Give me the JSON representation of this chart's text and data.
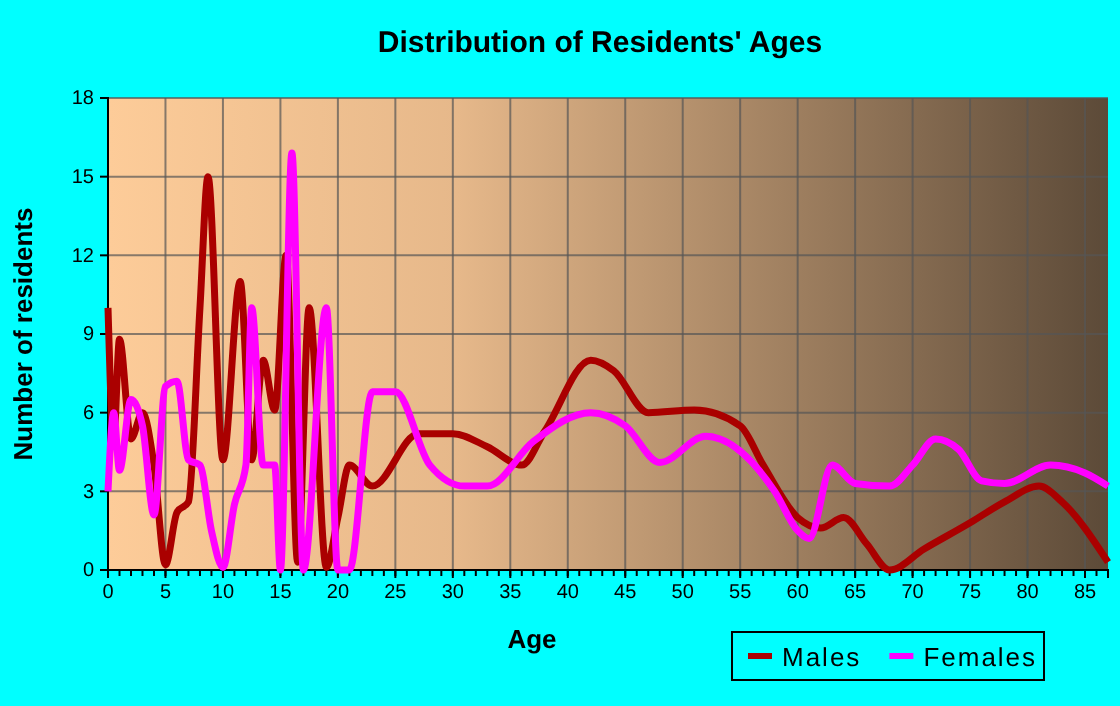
{
  "chart_data": {
    "type": "line",
    "title": "Distribution of Residents' Ages",
    "xlabel": "Age",
    "ylabel": "Number of residents",
    "xlim": [
      0,
      87
    ],
    "xticks": [
      0,
      5,
      10,
      15,
      20,
      25,
      30,
      35,
      40,
      45,
      50,
      55,
      60,
      65,
      70,
      75,
      80,
      85
    ],
    "ylim": [
      0,
      18
    ],
    "yticks": [
      0,
      3,
      6,
      9,
      12,
      15,
      18
    ],
    "grid": true,
    "legend": "bottom right",
    "marker": "none",
    "line_style": "solid",
    "series": [
      {
        "name": "Males",
        "color": "#aa0000",
        "x": [
          0,
          0.5,
          1,
          2,
          3,
          4,
          5,
          6,
          7,
          8,
          8.7,
          10,
          11.5,
          12.5,
          13.5,
          14.5,
          15.5,
          16.5,
          17.5,
          19,
          20,
          21,
          23,
          27,
          30,
          33,
          36,
          38,
          42,
          44,
          47,
          51,
          55,
          57,
          60,
          62,
          64,
          66,
          68,
          71,
          75,
          78,
          81,
          83,
          87
        ],
        "values": [
          10,
          5,
          8.8,
          5,
          6,
          4,
          0.2,
          2.2,
          2.6,
          10,
          15,
          4.2,
          11,
          4.2,
          8,
          6.1,
          12,
          0.3,
          10,
          0.1,
          2,
          4,
          3.2,
          5.2,
          5.2,
          4.7,
          4,
          5.3,
          8,
          7.6,
          6,
          6.1,
          5.5,
          4,
          2,
          1.6,
          2,
          1,
          0,
          0.8,
          1.8,
          2.6,
          3.2,
          2.6,
          0.3
        ]
      },
      {
        "name": "Females",
        "color": "#ff00ff",
        "x": [
          0,
          0.5,
          1,
          2,
          3,
          4,
          5,
          6,
          7,
          8,
          9,
          10,
          11,
          12,
          12.5,
          13.5,
          14.5,
          15,
          16,
          17,
          19,
          20,
          21,
          23,
          25,
          28,
          31,
          33,
          37,
          42,
          45,
          48,
          52,
          58,
          60,
          61,
          63,
          65,
          68,
          70,
          72,
          74,
          76,
          78,
          82,
          85,
          87
        ],
        "values": [
          3,
          6,
          3.8,
          6.5,
          5.5,
          2.1,
          7,
          7.2,
          4.2,
          4,
          1.5,
          0.1,
          2.5,
          4,
          10,
          4,
          4,
          0,
          15.9,
          0,
          10,
          0,
          0,
          6.8,
          6.8,
          4,
          3.2,
          3.2,
          4.9,
          6,
          5.5,
          4.1,
          5.1,
          3,
          1.5,
          1.2,
          4,
          3.3,
          3.2,
          4,
          5,
          4.6,
          3.4,
          3.3,
          4,
          3.7,
          3.2
        ]
      }
    ]
  }
}
